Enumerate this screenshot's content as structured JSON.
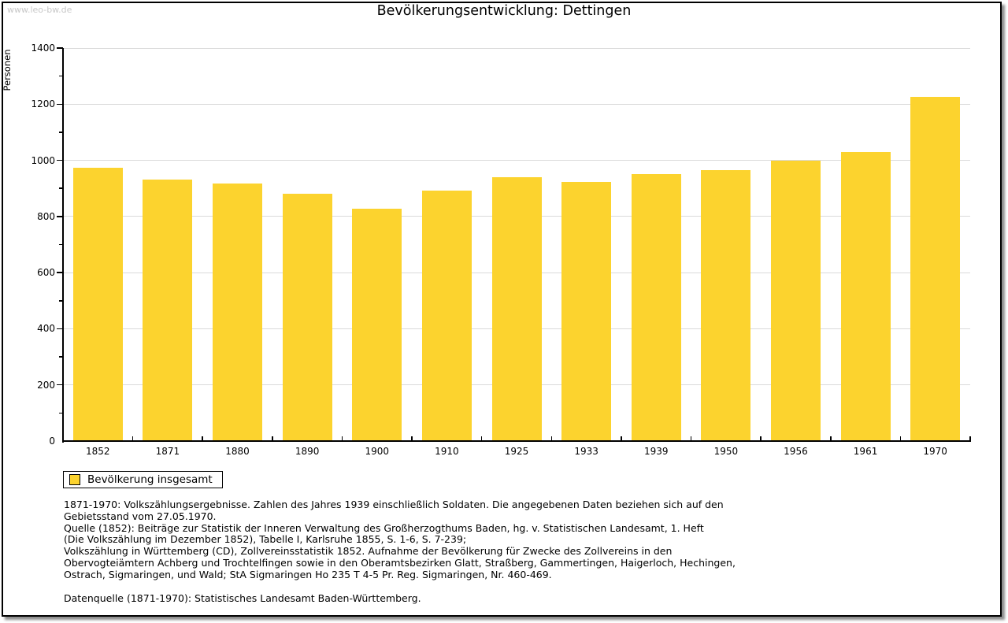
{
  "watermark": "www.leo-bw.de",
  "title": "Bevölkerungsentwicklung: Dettingen",
  "chart_data": {
    "type": "bar",
    "title": "Bevölkerungsentwicklung: Dettingen",
    "xlabel": "",
    "ylabel": "Personen",
    "categories": [
      "1852",
      "1871",
      "1880",
      "1890",
      "1900",
      "1910",
      "1925",
      "1933",
      "1939",
      "1950",
      "1956",
      "1961",
      "1970"
    ],
    "values": [
      971,
      930,
      916,
      877,
      826,
      890,
      936,
      921,
      947,
      962,
      997,
      1027,
      1224
    ],
    "ylim": [
      0,
      1400
    ],
    "ytick_major_step": 200,
    "ytick_minor_step": 100,
    "grid": true,
    "legend_position": "bottom-left",
    "bar_color": "#FCD32E"
  },
  "legend": {
    "label": "Bevölkerung insgesamt"
  },
  "colors": {
    "bar": "#FCD32E",
    "grid": "#DADADA",
    "axis": "#000000",
    "watermark": "#C8C8C8",
    "frame_border": "#000000"
  },
  "footnotes": {
    "lines": [
      "1871-1970: Volkszählungsergebnisse. Zahlen des Jahres 1939 einschließlich Soldaten. Die angegebenen Daten beziehen sich auf den",
      "Gebietsstand vom 27.05.1970.",
      "Quelle (1852): Beiträge zur Statistik der Inneren Verwaltung des Großherzogthums Baden, hg. v. Statistischen Landesamt, 1. Heft",
      "(Die Volkszählung im Dezember 1852), Tabelle I, Karlsruhe 1855, S. 1-6, S. 7-239;",
      "Volkszählung in Württemberg (CD), Zollvereinsstatistik 1852. Aufnahme der Bevölkerung für Zwecke des Zollvereins in den",
      "Obervogteiämtern Achberg und Trochtelfingen sowie in den Oberamtsbezirken Glatt, Straßberg, Gammertingen, Haigerloch, Hechingen,",
      "Ostrach, Sigmaringen, und Wald; StA Sigmaringen Ho 235 T 4-5 Pr. Reg. Sigmaringen, Nr. 460-469."
    ],
    "datasource": "Datenquelle (1871-1970): Statistisches Landesamt Baden-Württemberg."
  }
}
